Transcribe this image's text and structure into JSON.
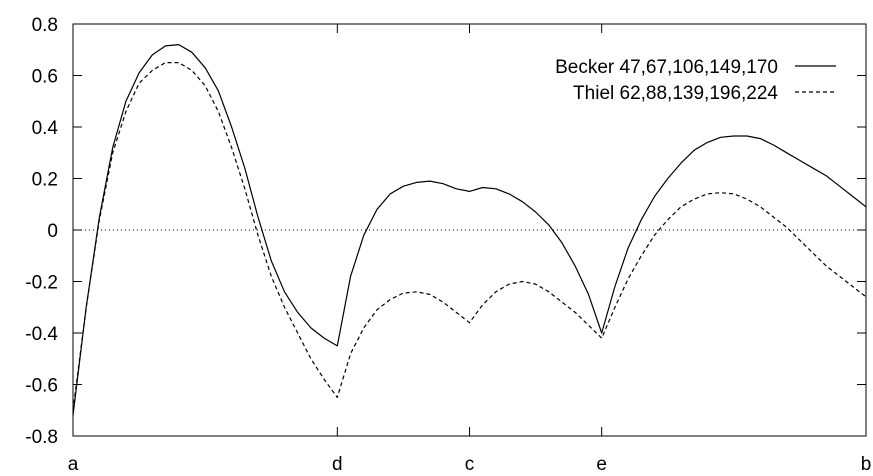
{
  "chart_data": {
    "type": "line",
    "title": "",
    "xlabel": "",
    "ylabel": "",
    "x_ticks": [
      {
        "label": "a",
        "x": 0.0
      },
      {
        "label": "d",
        "x": 1.0
      },
      {
        "label": "c",
        "x": 1.5
      },
      {
        "label": "e",
        "x": 2.0
      },
      {
        "label": "b",
        "x": 3.0
      }
    ],
    "xlim": [
      0,
      3
    ],
    "ylim": [
      -0.8,
      0.8
    ],
    "y_ticks": [
      "0.8",
      "0.6",
      "0.4",
      "0.2",
      "0",
      "-0.2",
      "-0.4",
      "-0.6",
      "-0.8"
    ],
    "y_tick_values": [
      0.8,
      0.6,
      0.4,
      0.2,
      0,
      -0.2,
      -0.4,
      -0.6,
      -0.8
    ],
    "zero_line": {
      "y": 0,
      "style": "dotted"
    },
    "grid": false,
    "legend_position": "top-right",
    "series": [
      {
        "name": "Becker 47,67,106,149,170",
        "style": "solid",
        "color": "#000000",
        "points": [
          [
            0.0,
            -0.72
          ],
          [
            0.05,
            -0.3
          ],
          [
            0.1,
            0.05
          ],
          [
            0.15,
            0.32
          ],
          [
            0.2,
            0.5
          ],
          [
            0.25,
            0.61
          ],
          [
            0.3,
            0.68
          ],
          [
            0.35,
            0.715
          ],
          [
            0.4,
            0.72
          ],
          [
            0.45,
            0.69
          ],
          [
            0.5,
            0.63
          ],
          [
            0.55,
            0.54
          ],
          [
            0.6,
            0.4
          ],
          [
            0.65,
            0.24
          ],
          [
            0.7,
            0.05
          ],
          [
            0.75,
            -0.12
          ],
          [
            0.8,
            -0.24
          ],
          [
            0.85,
            -0.32
          ],
          [
            0.9,
            -0.38
          ],
          [
            0.95,
            -0.42
          ],
          [
            1.0,
            -0.45
          ],
          [
            1.05,
            -0.18
          ],
          [
            1.1,
            -0.02
          ],
          [
            1.15,
            0.08
          ],
          [
            1.2,
            0.14
          ],
          [
            1.25,
            0.17
          ],
          [
            1.3,
            0.185
          ],
          [
            1.35,
            0.19
          ],
          [
            1.4,
            0.18
          ],
          [
            1.45,
            0.16
          ],
          [
            1.5,
            0.15
          ],
          [
            1.55,
            0.165
          ],
          [
            1.6,
            0.16
          ],
          [
            1.65,
            0.14
          ],
          [
            1.7,
            0.11
          ],
          [
            1.75,
            0.07
          ],
          [
            1.8,
            0.02
          ],
          [
            1.85,
            -0.05
          ],
          [
            1.9,
            -0.14
          ],
          [
            1.95,
            -0.25
          ],
          [
            2.0,
            -0.4
          ],
          [
            2.05,
            -0.22
          ],
          [
            2.1,
            -0.07
          ],
          [
            2.15,
            0.04
          ],
          [
            2.2,
            0.13
          ],
          [
            2.25,
            0.2
          ],
          [
            2.3,
            0.26
          ],
          [
            2.35,
            0.31
          ],
          [
            2.4,
            0.34
          ],
          [
            2.45,
            0.36
          ],
          [
            2.5,
            0.365
          ],
          [
            2.55,
            0.365
          ],
          [
            2.6,
            0.355
          ],
          [
            2.65,
            0.33
          ],
          [
            2.7,
            0.3
          ],
          [
            2.75,
            0.27
          ],
          [
            2.8,
            0.24
          ],
          [
            2.85,
            0.21
          ],
          [
            2.9,
            0.17
          ],
          [
            2.95,
            0.13
          ],
          [
            3.0,
            0.09
          ]
        ]
      },
      {
        "name": "Thiel 62,88,139,196,224",
        "style": "dashed",
        "color": "#000000",
        "points": [
          [
            0.0,
            -0.7
          ],
          [
            0.05,
            -0.3
          ],
          [
            0.1,
            0.04
          ],
          [
            0.15,
            0.3
          ],
          [
            0.2,
            0.46
          ],
          [
            0.25,
            0.57
          ],
          [
            0.3,
            0.62
          ],
          [
            0.35,
            0.65
          ],
          [
            0.4,
            0.65
          ],
          [
            0.45,
            0.62
          ],
          [
            0.5,
            0.56
          ],
          [
            0.55,
            0.46
          ],
          [
            0.6,
            0.32
          ],
          [
            0.65,
            0.16
          ],
          [
            0.7,
            -0.02
          ],
          [
            0.75,
            -0.18
          ],
          [
            0.8,
            -0.3
          ],
          [
            0.85,
            -0.4
          ],
          [
            0.9,
            -0.5
          ],
          [
            0.95,
            -0.58
          ],
          [
            1.0,
            -0.65
          ],
          [
            1.05,
            -0.48
          ],
          [
            1.1,
            -0.38
          ],
          [
            1.15,
            -0.31
          ],
          [
            1.2,
            -0.27
          ],
          [
            1.25,
            -0.245
          ],
          [
            1.3,
            -0.24
          ],
          [
            1.35,
            -0.25
          ],
          [
            1.4,
            -0.28
          ],
          [
            1.45,
            -0.32
          ],
          [
            1.5,
            -0.36
          ],
          [
            1.55,
            -0.29
          ],
          [
            1.6,
            -0.24
          ],
          [
            1.65,
            -0.21
          ],
          [
            1.7,
            -0.2
          ],
          [
            1.75,
            -0.21
          ],
          [
            1.8,
            -0.24
          ],
          [
            1.85,
            -0.28
          ],
          [
            1.9,
            -0.32
          ],
          [
            1.95,
            -0.37
          ],
          [
            2.0,
            -0.42
          ],
          [
            2.05,
            -0.3
          ],
          [
            2.1,
            -0.19
          ],
          [
            2.15,
            -0.1
          ],
          [
            2.2,
            -0.02
          ],
          [
            2.25,
            0.04
          ],
          [
            2.3,
            0.09
          ],
          [
            2.35,
            0.12
          ],
          [
            2.4,
            0.14
          ],
          [
            2.45,
            0.145
          ],
          [
            2.5,
            0.14
          ],
          [
            2.55,
            0.12
          ],
          [
            2.6,
            0.09
          ],
          [
            2.65,
            0.05
          ],
          [
            2.7,
            0.01
          ],
          [
            2.75,
            -0.04
          ],
          [
            2.8,
            -0.09
          ],
          [
            2.85,
            -0.14
          ],
          [
            2.9,
            -0.18
          ],
          [
            2.95,
            -0.22
          ],
          [
            3.0,
            -0.26
          ]
        ]
      }
    ]
  }
}
